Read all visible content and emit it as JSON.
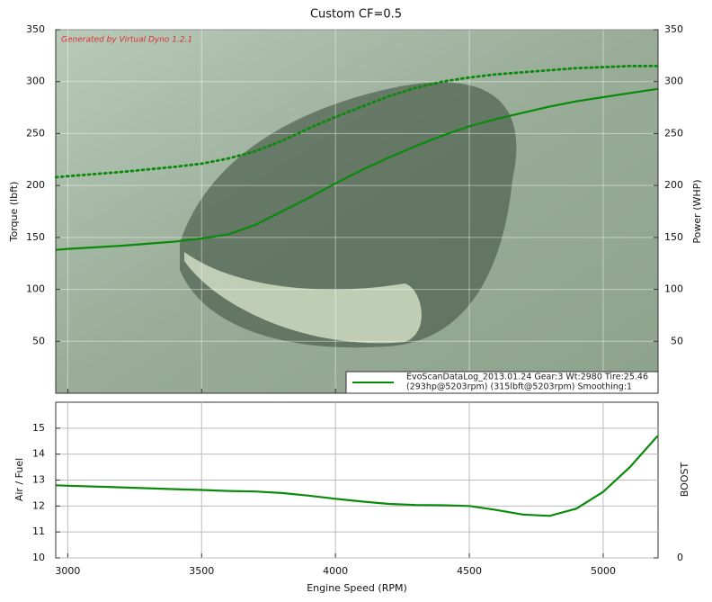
{
  "chart_data": [
    {
      "type": "line",
      "title": "Custom CF=0.5",
      "watermark": "Generated by Virtual Dyno 1.2.1",
      "ylabel": "Torque (lbft)",
      "y2label": "Power (WHP)",
      "x": [
        2956,
        3000,
        3200,
        3400,
        3500,
        3600,
        3700,
        3800,
        3900,
        4000,
        4100,
        4200,
        4300,
        4400,
        4500,
        4600,
        4700,
        4800,
        4900,
        5000,
        5100,
        5203
      ],
      "xlim": [
        2955,
        5205
      ],
      "xticks": [
        3000,
        3500,
        4000,
        4500,
        5000
      ],
      "ylim": [
        0,
        350
      ],
      "yticks": [
        50,
        100,
        150,
        200,
        250,
        300,
        350
      ],
      "y2lim": [
        0,
        350
      ],
      "y2ticks": [
        50,
        100,
        150,
        200,
        250,
        300,
        350
      ],
      "grid": true,
      "legend_text": [
        "EvoScanDataLog_2013.01.24 Gear:3 Wt:2980 Tire:25.46",
        "(293hp@5203rpm) (315lbft@5203rpm) Smoothing:1"
      ],
      "series": [
        {
          "color": "#0a8a0a",
          "style": "solid",
          "axis": "y2",
          "values": [
            138,
            139,
            142,
            146,
            149,
            153,
            162,
            175,
            188,
            202,
            215,
            227,
            238,
            248,
            257,
            264,
            270,
            276,
            281,
            285,
            289,
            293
          ]
        },
        {
          "color": "#0a8a0a",
          "style": "dotted",
          "values": [
            208,
            209,
            213,
            218,
            221,
            226,
            233,
            243,
            255,
            266,
            276,
            286,
            294,
            300,
            304,
            307,
            309,
            311,
            313,
            314,
            315,
            315
          ]
        }
      ]
    },
    {
      "type": "line",
      "ylabel": "Air / Fuel",
      "y2label": "BOOST",
      "xlabel": "Engine Speed (RPM)",
      "x": [
        2956,
        3000,
        3200,
        3400,
        3500,
        3600,
        3700,
        3800,
        3900,
        4000,
        4100,
        4200,
        4300,
        4400,
        4500,
        4600,
        4700,
        4800,
        4900,
        5000,
        5100,
        5203
      ],
      "xlim": [
        2955,
        5205
      ],
      "xticks": [
        3000,
        3500,
        4000,
        4500,
        5000
      ],
      "ylim": [
        10,
        16
      ],
      "yticks": [
        10,
        11,
        12,
        13,
        14,
        15
      ],
      "y2lim": [
        0,
        6
      ],
      "y2ticks": [
        0
      ],
      "grid": true,
      "series": [
        {
          "color": "#0a8a0a",
          "style": "solid",
          "values": [
            12.8,
            12.78,
            12.72,
            12.65,
            12.62,
            12.58,
            12.56,
            12.5,
            12.4,
            12.28,
            12.17,
            12.08,
            12.04,
            12.03,
            12.0,
            11.85,
            11.67,
            11.62,
            11.9,
            12.55,
            13.5,
            14.7
          ]
        }
      ]
    }
  ]
}
